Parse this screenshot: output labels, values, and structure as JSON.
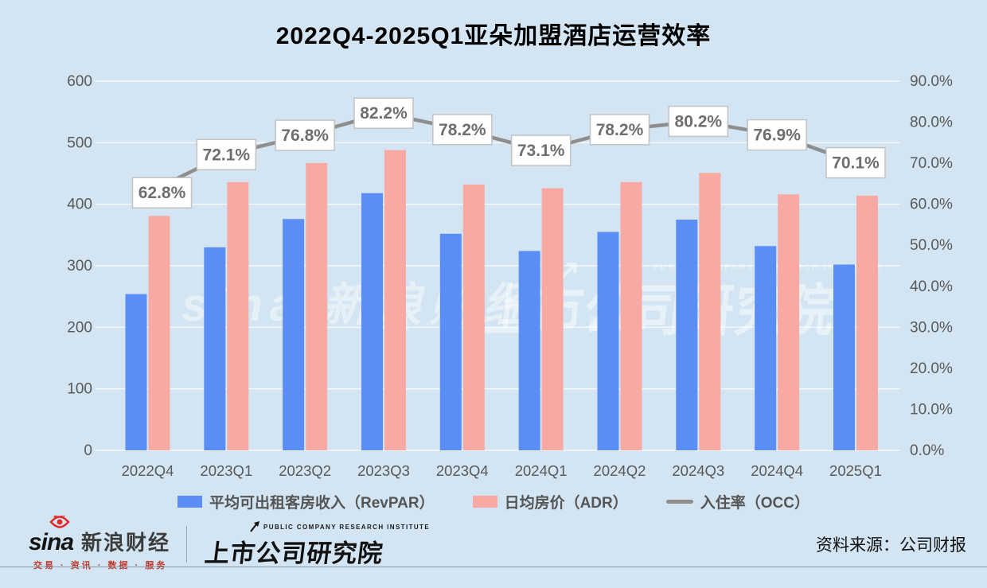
{
  "title": "2022Q4-2025Q1亚朵加盟酒店运营效率",
  "chart_data": {
    "type": "combo-bar-line",
    "categories": [
      "2022Q4",
      "2023Q1",
      "2023Q2",
      "2023Q3",
      "2023Q4",
      "2024Q1",
      "2024Q2",
      "2024Q3",
      "2024Q4",
      "2025Q1"
    ],
    "series": [
      {
        "name": "平均可出租客房收入（RevPAR）",
        "type": "bar",
        "axis": "left",
        "color": "#5b8ef4",
        "values": [
          254,
          330,
          376,
          418,
          352,
          324,
          355,
          375,
          332,
          302
        ]
      },
      {
        "name": "日均房价（ADR）",
        "type": "bar",
        "axis": "left",
        "color": "#f8a9a4",
        "values": [
          381,
          436,
          467,
          488,
          432,
          426,
          436,
          451,
          416,
          414
        ]
      },
      {
        "name": "入住率（OCC）",
        "type": "line",
        "axis": "right",
        "color": "#8e8e8e",
        "values": [
          62.8,
          72.1,
          76.8,
          82.2,
          78.2,
          73.1,
          78.2,
          80.2,
          76.9,
          70.1
        ],
        "point_labels": [
          "62.8%",
          "72.1%",
          "76.8%",
          "82.2%",
          "78.2%",
          "73.1%",
          "78.2%",
          "80.2%",
          "76.9%",
          "70.1%"
        ]
      }
    ],
    "left_axis": {
      "min": 0,
      "max": 600,
      "step": 100,
      "ticks": [
        "0",
        "100",
        "200",
        "300",
        "400",
        "500",
        "600"
      ]
    },
    "right_axis": {
      "min": 0,
      "max": 90,
      "step": 10,
      "ticks": [
        "0.0%",
        "10.0%",
        "20.0%",
        "30.0%",
        "40.0%",
        "50.0%",
        "60.0%",
        "70.0%",
        "80.0%",
        "90.0%"
      ]
    },
    "grid": true,
    "legend_position": "bottom"
  },
  "watermarks": {
    "left_logo": "sina 新浪财经",
    "left_tagline": "交易 · 资讯 · 数据 · 服务",
    "arrow": "↗",
    "right_en": "PUBLIC COMPANY RESEARCH INSTITUTE",
    "right_logo": "上市公司研究院"
  },
  "footer": {
    "sina": {
      "wordmark": "sina",
      "brand": "新浪财经",
      "tagline": "交易 · 资讯 · 数据 · 服务"
    },
    "institute": {
      "en": "PUBLIC COMPANY RESEARCH INSTITUTE",
      "zh": "上市公司研究院"
    },
    "source": "资料来源：公司财报"
  },
  "colors": {
    "background": "#d3e5f2",
    "revpar_bar": "#5b8ef4",
    "adr_bar": "#f8a9a4",
    "occ_line": "#8e8e8e",
    "label_box_fill": "#ffffff",
    "label_box_border": "#c2c2c2",
    "label_text": "#6e6e6e",
    "axis_text": "#595959",
    "title_text": "#000000",
    "gridline": "rgba(255,255,255,0.75)"
  }
}
